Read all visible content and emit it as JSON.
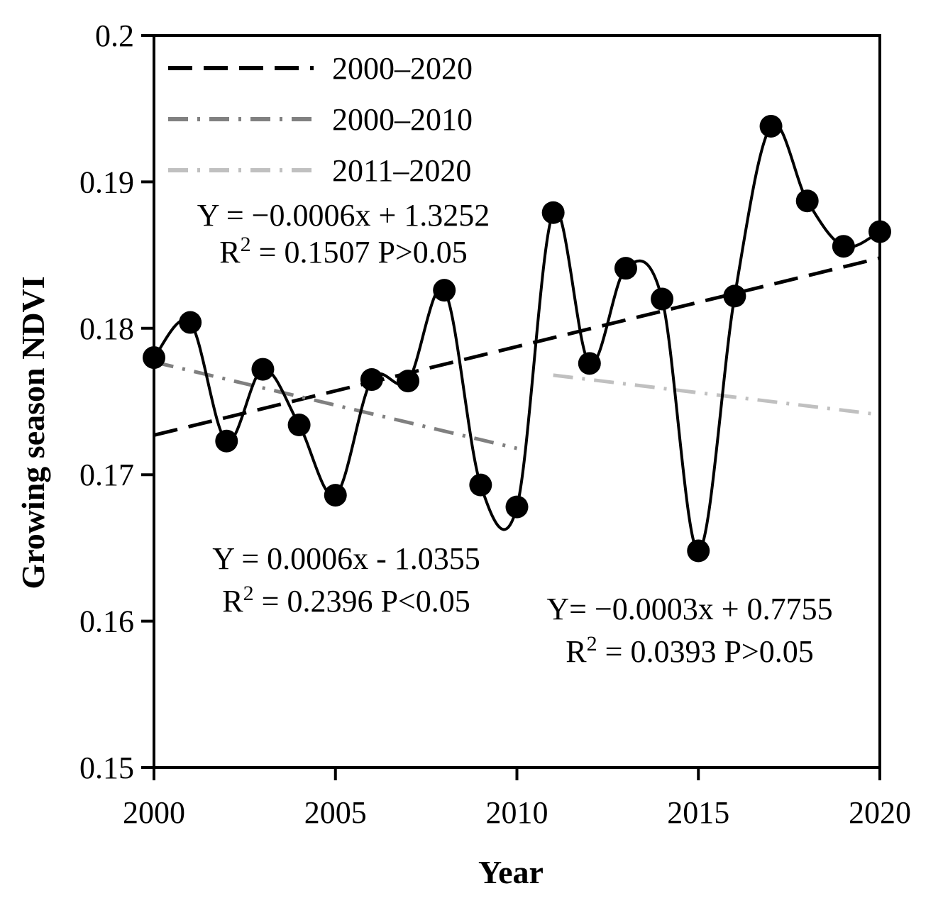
{
  "chart_data": {
    "type": "line",
    "xlabel": "Year",
    "ylabel": "Growing season NDVI",
    "xlim": [
      2000,
      2020
    ],
    "ylim": [
      0.15,
      0.2
    ],
    "x_ticks": [
      2000,
      2005,
      2010,
      2015,
      2020
    ],
    "x_tick_labels": [
      "2000",
      "2005",
      "2010",
      "2015",
      "2020"
    ],
    "y_ticks": [
      0.15,
      0.16,
      0.17,
      0.18,
      0.19,
      0.2
    ],
    "y_tick_labels": [
      "0.15",
      "0.16",
      "0.17",
      "0.18",
      "0.19",
      "0.2"
    ],
    "grid": false,
    "legend_position": "top-left",
    "series": [
      {
        "name": "NDVI",
        "style": "smooth-line-with-markers",
        "color": "#000000",
        "x": [
          2000,
          2001,
          2002,
          2003,
          2004,
          2005,
          2006,
          2007,
          2008,
          2009,
          2010,
          2011,
          2012,
          2013,
          2014,
          2015,
          2016,
          2017,
          2018,
          2019,
          2020
        ],
        "values": [
          0.178,
          0.1804,
          0.1723,
          0.1772,
          0.1734,
          0.1686,
          0.1765,
          0.1764,
          0.1826,
          0.1693,
          0.1678,
          0.1879,
          0.1776,
          0.1841,
          0.182,
          0.1648,
          0.1822,
          0.1938,
          0.1887,
          0.1856,
          0.1866
        ]
      }
    ],
    "trend_lines": [
      {
        "name": "2000–2020",
        "style": "dashed",
        "color": "#000000",
        "x": [
          2000,
          2020
        ],
        "values": [
          0.1727,
          0.1848
        ]
      },
      {
        "name": "2000–2010",
        "style": "dash-dot",
        "color": "#808080",
        "x": [
          2000,
          2010
        ],
        "values": [
          0.1777,
          0.1718
        ]
      },
      {
        "name": "2011–2020",
        "style": "dash-dot",
        "color": "#c0c0c0",
        "x": [
          2011,
          2020
        ],
        "values": [
          0.1768,
          0.1741
        ]
      }
    ],
    "annotations": [
      {
        "line1": "Y = −0.0006x + 1.3252",
        "r2_label": "R",
        "r2_sup": "2",
        "line2_rest": " = 0.1507 P>0.05"
      },
      {
        "line1": "Y = 0.0006x - 1.0355",
        "r2_label": "R",
        "r2_sup": "2",
        "line2_rest": " = 0.2396 P<0.05"
      },
      {
        "line1": "Y= −0.0003x + 0.7755",
        "r2_label": "R",
        "r2_sup": "2",
        "line2_rest": " = 0.0393 P>0.05"
      }
    ]
  }
}
